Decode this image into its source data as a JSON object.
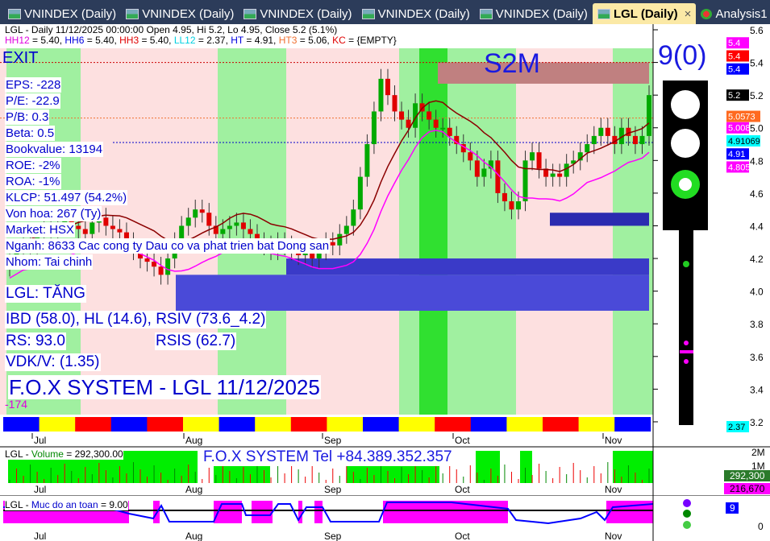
{
  "tabs": [
    {
      "label": "VNINDEX (Daily)"
    },
    {
      "label": "VNINDEX (Daily)"
    },
    {
      "label": "VNINDEX (Daily)"
    },
    {
      "label": "VNINDEX (Daily)"
    },
    {
      "label": "VNINDEX (Daily)"
    },
    {
      "label": "LGL (Daily)",
      "active": true
    },
    {
      "label": "Analysis1"
    }
  ],
  "header": {
    "line1": "LGL - Daily 11/12/2025 00:00:00 Open 4.95, Hi 5.2, Lo 4.95, Close 5.2 (5.1%)",
    "line2": [
      {
        "k": "HH12",
        "v": " = 5.40, ",
        "c": "#e000e0"
      },
      {
        "k": "HH6",
        "v": " = 5.40, ",
        "c": "#0000e0"
      },
      {
        "k": "HH3",
        "v": " = 5.40, ",
        "c": "#e00000"
      },
      {
        "k": "LL12",
        "v": " = 2.37, ",
        "c": "#00d0e0"
      },
      {
        "k": "HT",
        "v": "  = 4.91, ",
        "c": "#0000e0"
      },
      {
        "k": "HT3",
        "v": "  = 5.06, ",
        "c": "#f07030"
      },
      {
        "k": "KC",
        "v": " = {EMPTY}",
        "c": "#e00000"
      }
    ]
  },
  "signals": {
    "exit": "EXIT",
    "s2m": "S2M",
    "count": "9(0)"
  },
  "fundamentals": [
    "EPS: -228",
    "P/E: -22.9",
    "P/B: 0.3",
    "Beta: 0.5",
    "Bookvalue: 13194",
    "ROE: -2%",
    "ROA: -1%",
    "KLCP: 51.497 (54.2%)",
    "Von hoa: 267 (Ty)",
    "Market: HSX",
    "Nganh: 8633 Cac cong ty Dau co va phat trien bat Dong san",
    "Nhom: Tai chinh"
  ],
  "status": {
    "trend": "LGL: TĂNG",
    "ibd": "IBD (58.0), HL (14.6), RSIV (73.6_4.2)",
    "rsis": "RSIS (62.7)",
    "rs": "RS: 93.0",
    "vdk": "VDK/V:  (1.35)",
    "brand": "F.O.X SYSTEM - LGL 11/12/2025",
    "low_value": "-174"
  },
  "price_axis": {
    "ticks": [
      "5.6",
      "5.4",
      "5.2",
      "5.0",
      "4.8",
      "4.6",
      "4.4",
      "4.2",
      "4.0",
      "3.8",
      "3.6",
      "3.4",
      "3.2"
    ],
    "markers": [
      {
        "v": "5.4",
        "c": "#ff00ff"
      },
      {
        "v": "5.4",
        "c": "#ff0000"
      },
      {
        "v": "5.4",
        "c": "#0000ff"
      },
      {
        "v": "5.2",
        "c": "#000000"
      },
      {
        "v": "5.0573",
        "c": "#ff6a20"
      },
      {
        "v": "5.008",
        "c": "#ff00ff"
      },
      {
        "v": "4.91069",
        "c": "#00ffff"
      },
      {
        "v": "4.91",
        "c": "#0000ff"
      },
      {
        "v": "4.805",
        "c": "#ff00ff"
      },
      {
        "v": "2.37",
        "c": "#00ffff"
      }
    ]
  },
  "date_axis": [
    "Jul",
    "Aug",
    "Sep",
    "Oct",
    "Nov"
  ],
  "volume": {
    "title": "LGL - ",
    "name": "Volume",
    "value": " = 292,300.00",
    "ticks": [
      "2M",
      "1M"
    ],
    "last": "292,300",
    "avg": "216,670",
    "banner": "F.O.X SYSTEM Tel +84.389.352.357"
  },
  "safety": {
    "title": "LGL - ",
    "name": "Muc do an toan",
    "value": " = 9.00",
    "last": "9",
    "zero": "0"
  },
  "colors": {
    "up": "#00aa00",
    "down": "#e00000",
    "bull_band": "#a0f0a0",
    "bear_band": "#fde0e0",
    "zone": "#4040d0"
  },
  "chart_data": {
    "type": "candlestick",
    "title": "LGL - Daily",
    "ylim": [
      3.2,
      5.6
    ],
    "months": [
      "Jul",
      "Aug",
      "Sep",
      "Oct",
      "Nov"
    ],
    "closes_by_month": {
      "Jul": [
        4.2,
        4.25,
        4.3,
        4.28,
        4.35,
        4.4,
        4.38,
        4.42,
        4.45,
        4.4,
        4.38,
        4.35,
        4.42,
        4.45,
        4.4,
        4.38,
        4.36,
        4.3,
        4.25,
        4.2,
        4.18,
        4.15
      ],
      "Aug": [
        4.1,
        4.2,
        4.3,
        4.4,
        4.45,
        4.5,
        4.48,
        4.4,
        4.35,
        4.38,
        4.4,
        4.42,
        4.38,
        4.35,
        4.3,
        4.28,
        4.25,
        4.3,
        4.28,
        4.25
      ],
      "Sep": [
        4.22,
        4.25,
        4.2,
        4.25,
        4.3,
        4.28,
        4.35,
        4.4,
        4.5,
        4.7,
        4.9,
        5.1,
        5.3,
        5.2,
        5.1,
        5.05,
        5.0,
        5.15,
        5.1,
        5.05,
        5.0
      ],
      "Oct": [
        5.0,
        4.95,
        4.9,
        4.85,
        4.8,
        4.7,
        4.75,
        4.8,
        4.6,
        4.55,
        4.5,
        4.55,
        4.8,
        4.85,
        4.75,
        4.7,
        4.72,
        4.7,
        4.78,
        4.8,
        4.85,
        4.9,
        4.95
      ],
      "Nov": [
        5.0,
        4.95,
        4.9,
        5.0,
        4.95,
        4.9,
        4.95,
        5.2
      ]
    },
    "last": {
      "open": 4.95,
      "high": 5.2,
      "low": 4.95,
      "close": 5.2,
      "change_pct": 5.1
    }
  }
}
